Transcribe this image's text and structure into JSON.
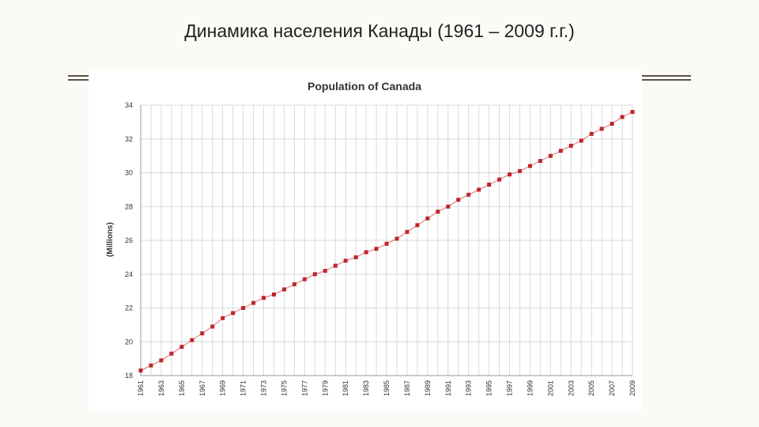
{
  "slide": {
    "title": "Динамика населения Канады (1961 – 2009 г.г.)"
  },
  "colors": {
    "accent_rule": "#5b5145",
    "series": "#c0262c",
    "grid": "#d9d9d9"
  },
  "chart_data": {
    "type": "line",
    "title": "Population of Canada",
    "xlabel": "",
    "ylabel": "(Millions)",
    "ylim": [
      18,
      34
    ],
    "yticks": [
      18,
      20,
      22,
      24,
      26,
      28,
      30,
      32,
      34
    ],
    "xlim": [
      1961,
      2009
    ],
    "xticks": [
      1961,
      1963,
      1965,
      1967,
      1969,
      1971,
      1973,
      1975,
      1977,
      1979,
      1981,
      1983,
      1985,
      1987,
      1989,
      1991,
      1993,
      1995,
      1997,
      1999,
      2001,
      2003,
      2005,
      2007,
      2009
    ],
    "grid": true,
    "legend": "none",
    "marker": "square",
    "series": [
      {
        "x": [
          1961,
          1962,
          1963,
          1964,
          1965,
          1966,
          1967,
          1968,
          1969,
          1970,
          1971,
          1972,
          1973,
          1974,
          1975,
          1976,
          1977,
          1978,
          1979,
          1980,
          1981,
          1982,
          1983,
          1984,
          1985,
          1986,
          1987,
          1988,
          1989,
          1990,
          1991,
          1992,
          1993,
          1994,
          1995,
          1996,
          1997,
          1998,
          1999,
          2000,
          2001,
          2002,
          2003,
          2004,
          2005,
          2006,
          2007,
          2008,
          2009
        ],
        "values": [
          18.3,
          18.6,
          18.9,
          19.3,
          19.7,
          20.1,
          20.5,
          20.9,
          21.4,
          21.7,
          22.0,
          22.3,
          22.6,
          22.8,
          23.1,
          23.4,
          23.7,
          24.0,
          24.2,
          24.5,
          24.8,
          25.0,
          25.3,
          25.5,
          25.8,
          26.1,
          26.5,
          26.9,
          27.3,
          27.7,
          28.0,
          28.4,
          28.7,
          29.0,
          29.3,
          29.6,
          29.9,
          30.1,
          30.4,
          30.7,
          31.0,
          31.3,
          31.6,
          31.9,
          32.3,
          32.6,
          32.9,
          33.3,
          33.6
        ]
      }
    ]
  }
}
